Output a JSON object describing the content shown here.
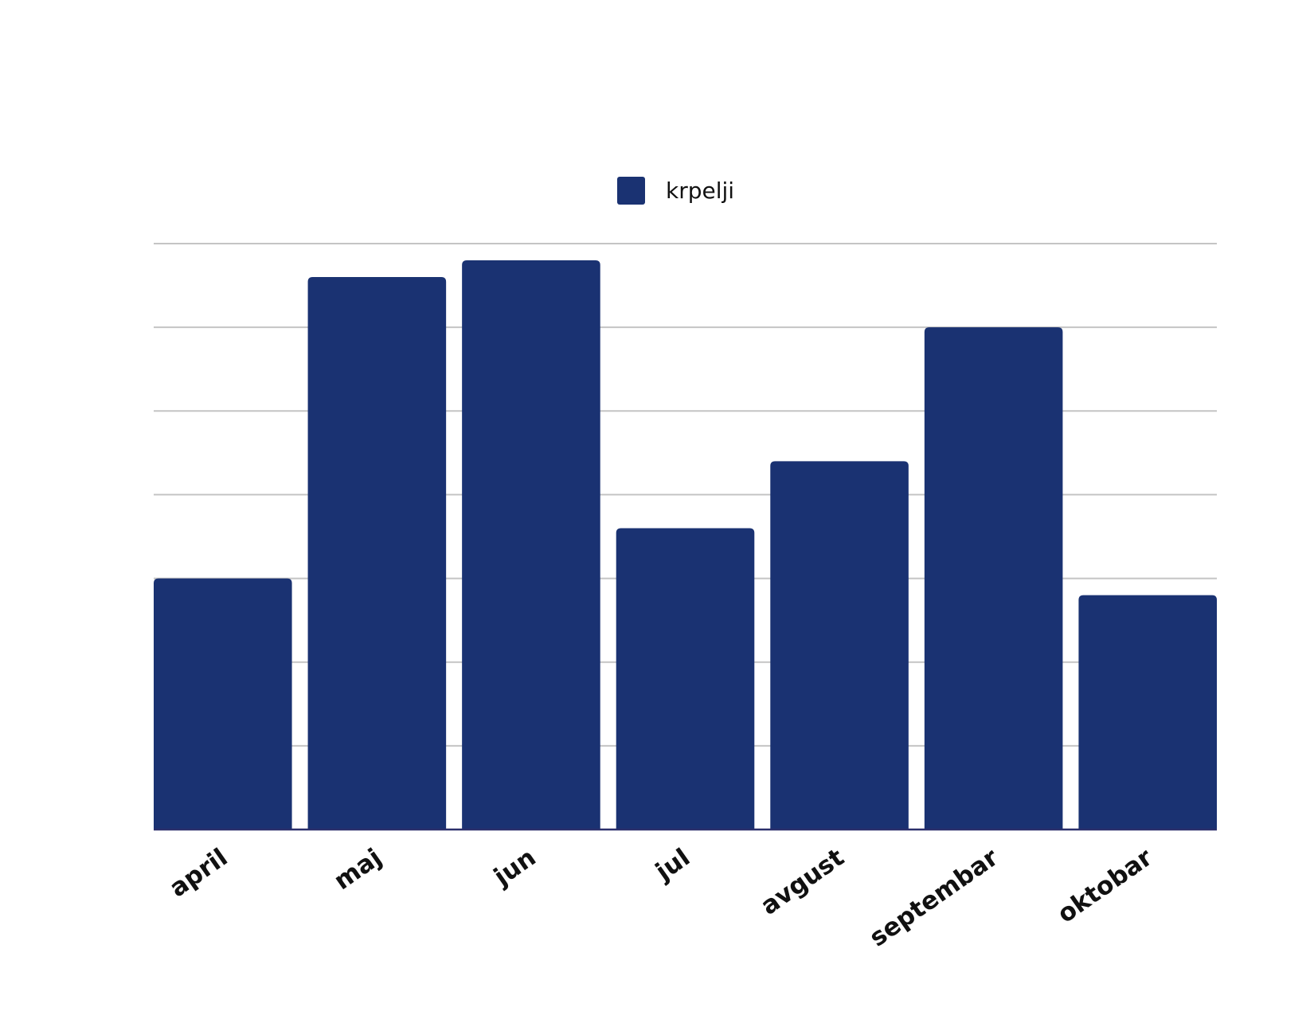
{
  "colors": {
    "bar": "#1a3272",
    "grid": "#c4c4c4",
    "axis": "#2b2f6b",
    "text": "#111111"
  },
  "chart_data": {
    "type": "bar",
    "title": "",
    "xlabel": "",
    "ylabel": "",
    "categories": [
      "april",
      "maj",
      "jun",
      "jul",
      "avgust",
      "septembar",
      "oktobar"
    ],
    "series": [
      {
        "name": "krpelji",
        "values": [
          3.0,
          6.6,
          6.8,
          3.6,
          4.4,
          6.0,
          2.8
        ]
      }
    ],
    "ylim": [
      0,
      7
    ],
    "grid": true,
    "y_tick_labels_shown": false,
    "legend_position": "top-center"
  }
}
